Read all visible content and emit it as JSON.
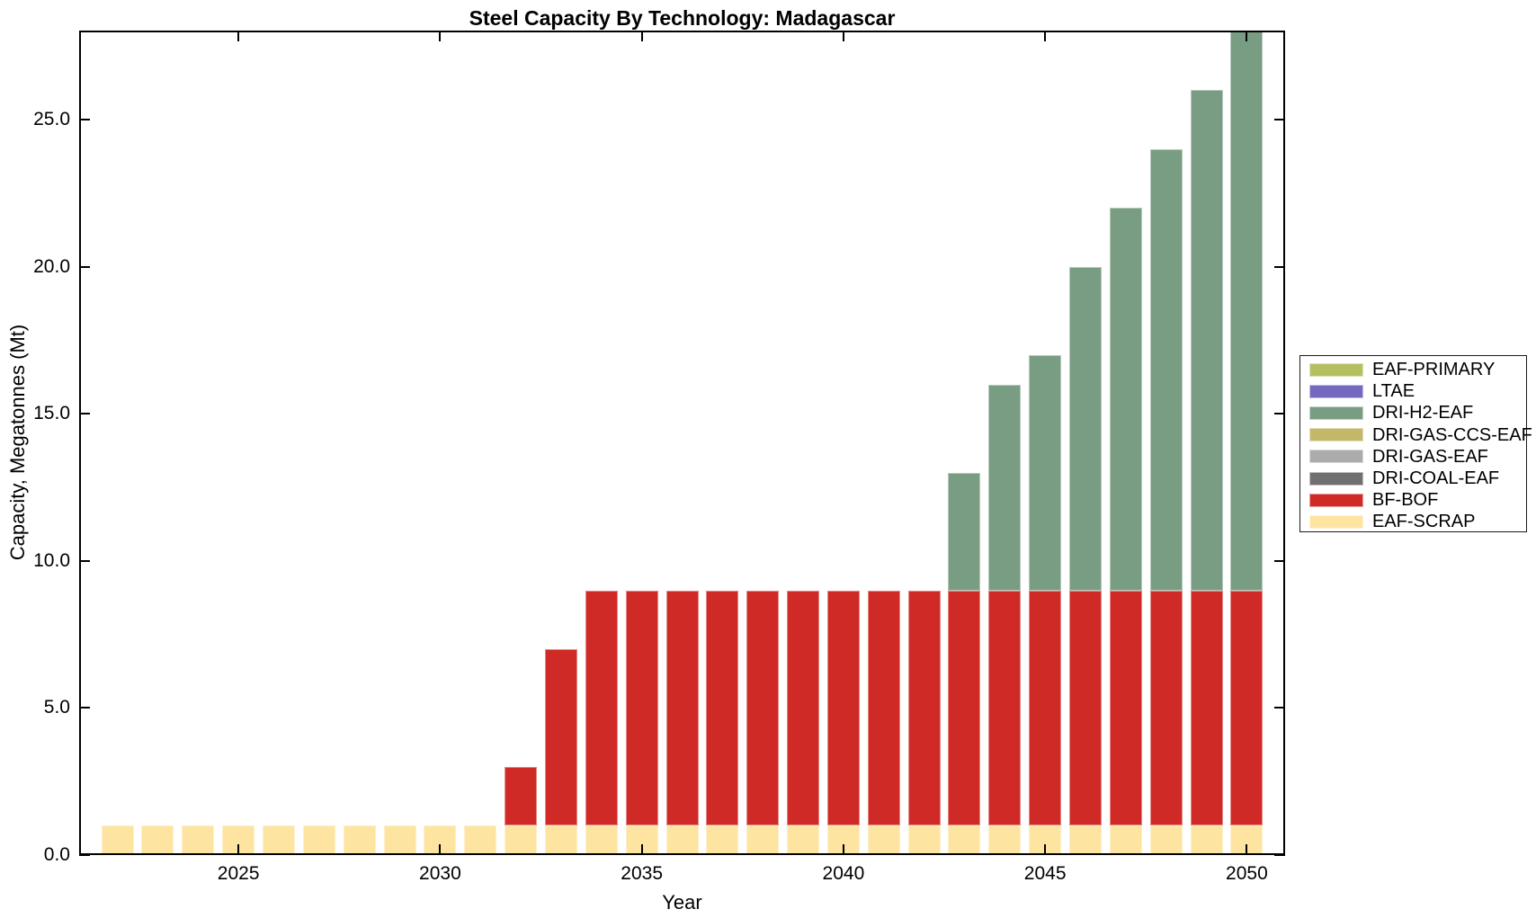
{
  "chart_data": {
    "type": "bar",
    "stacked": true,
    "title": "Steel Capacity By Technology: Madagascar",
    "xlabel": "Year",
    "ylabel": "Capacity, Megatonnes (Mt)",
    "x": [
      2022,
      2023,
      2024,
      2025,
      2026,
      2027,
      2028,
      2029,
      2030,
      2031,
      2032,
      2033,
      2034,
      2035,
      2036,
      2037,
      2038,
      2039,
      2040,
      2041,
      2042,
      2043,
      2044,
      2045,
      2046,
      2047,
      2048,
      2049,
      2050
    ],
    "series": [
      {
        "name": "EAF-SCRAP",
        "color": "#fde4a0",
        "values": [
          1,
          1,
          1,
          1,
          1,
          1,
          1,
          1,
          1,
          1,
          1,
          1,
          1,
          1,
          1,
          1,
          1,
          1,
          1,
          1,
          1,
          1,
          1,
          1,
          1,
          1,
          1,
          1,
          1
        ]
      },
      {
        "name": "BF-BOF",
        "color": "#cf2a26",
        "values": [
          0,
          0,
          0,
          0,
          0,
          0,
          0,
          0,
          0,
          0,
          2,
          6,
          8,
          8,
          8,
          8,
          8,
          8,
          8,
          8,
          8,
          8,
          8,
          8,
          8,
          8,
          8,
          8,
          8
        ]
      },
      {
        "name": "DRI-COAL-EAF",
        "color": "#707070",
        "values": [
          0,
          0,
          0,
          0,
          0,
          0,
          0,
          0,
          0,
          0,
          0,
          0,
          0,
          0,
          0,
          0,
          0,
          0,
          0,
          0,
          0,
          0,
          0,
          0,
          0,
          0,
          0,
          0,
          0
        ]
      },
      {
        "name": "DRI-GAS-EAF",
        "color": "#ababab",
        "values": [
          0,
          0,
          0,
          0,
          0,
          0,
          0,
          0,
          0,
          0,
          0,
          0,
          0,
          0,
          0,
          0,
          0,
          0,
          0,
          0,
          0,
          0,
          0,
          0,
          0,
          0,
          0,
          0,
          0
        ]
      },
      {
        "name": "DRI-GAS-CCS-EAF",
        "color": "#c3b769",
        "values": [
          0,
          0,
          0,
          0,
          0,
          0,
          0,
          0,
          0,
          0,
          0,
          0,
          0,
          0,
          0,
          0,
          0,
          0,
          0,
          0,
          0,
          0,
          0,
          0,
          0,
          0,
          0,
          0,
          0
        ]
      },
      {
        "name": "DRI-H2-EAF",
        "color": "#799d82",
        "values": [
          0,
          0,
          0,
          0,
          0,
          0,
          0,
          0,
          0,
          0,
          0,
          0,
          0,
          0,
          0,
          0,
          0,
          0,
          0,
          0,
          0,
          4,
          7,
          8,
          11,
          13,
          15,
          17,
          19
        ]
      },
      {
        "name": "LTAE",
        "color": "#7568c1",
        "values": [
          0,
          0,
          0,
          0,
          0,
          0,
          0,
          0,
          0,
          0,
          0,
          0,
          0,
          0,
          0,
          0,
          0,
          0,
          0,
          0,
          0,
          0,
          0,
          0,
          0,
          0,
          0,
          0,
          0
        ]
      },
      {
        "name": "EAF-PRIMARY",
        "color": "#b6be62",
        "values": [
          0,
          0,
          0,
          0,
          0,
          0,
          0,
          0,
          0,
          0,
          0,
          0,
          0,
          0,
          0,
          0,
          0,
          0,
          0,
          0,
          0,
          0,
          0,
          0,
          0,
          0,
          0,
          0,
          0
        ]
      }
    ],
    "totals": [
      1,
      1,
      1,
      1,
      1,
      1,
      1,
      1,
      1,
      1,
      3,
      7,
      9,
      9,
      9,
      9,
      9,
      9,
      9,
      9,
      9,
      13,
      16,
      17,
      20,
      22,
      24,
      26,
      28
    ],
    "xticks": [
      2025,
      2030,
      2035,
      2040,
      2045,
      2050
    ],
    "ytick_labels": [
      "0.0",
      "5.0",
      "10.0",
      "15.0",
      "20.0",
      "25.0"
    ],
    "ylim": [
      0,
      28
    ],
    "xlim": [
      2021.05,
      2050.95
    ],
    "grid": false,
    "legend_position": "right-outside"
  },
  "legend": {
    "entries": [
      {
        "label": "EAF-PRIMARY",
        "color": "#b6be62"
      },
      {
        "label": "LTAE",
        "color": "#7568c1"
      },
      {
        "label": "DRI-H2-EAF",
        "color": "#799d82"
      },
      {
        "label": "DRI-GAS-CCS-EAF",
        "color": "#c3b769"
      },
      {
        "label": "DRI-GAS-EAF",
        "color": "#ababab"
      },
      {
        "label": "DRI-COAL-EAF",
        "color": "#707070"
      },
      {
        "label": "BF-BOF",
        "color": "#cf2a26"
      },
      {
        "label": "EAF-SCRAP",
        "color": "#fde4a0"
      }
    ]
  },
  "colors": {
    "axis": "#000000",
    "background": "#ffffff",
    "bar_edge": "rgba(255,255,255,0.45)"
  }
}
